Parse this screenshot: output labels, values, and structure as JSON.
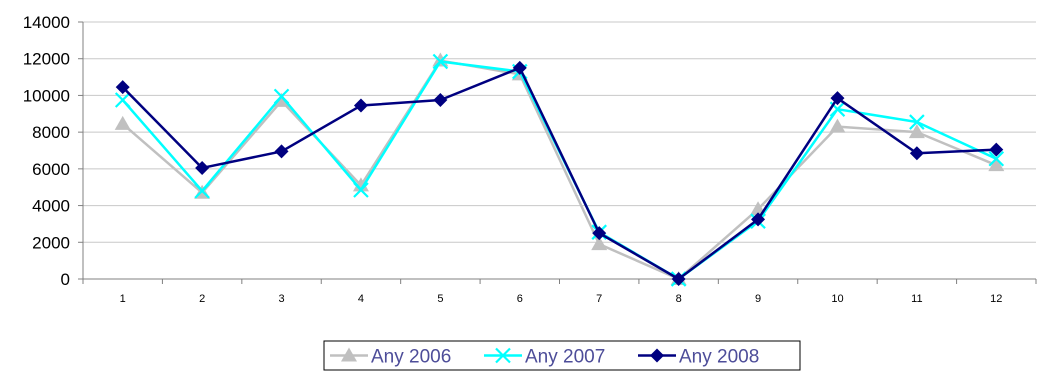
{
  "chart_data": {
    "type": "line",
    "title": "",
    "xlabel": "",
    "ylabel": "",
    "categories": [
      "1",
      "2",
      "3",
      "4",
      "5",
      "6",
      "7",
      "8",
      "9",
      "10",
      "11",
      "12"
    ],
    "ylim": [
      0,
      14000
    ],
    "yticks": [
      0,
      2000,
      4000,
      6000,
      8000,
      10000,
      12000,
      14000
    ],
    "grid": "horizontal",
    "legend": "bottom",
    "series": [
      {
        "name": "Any 2006",
        "marker": "triangle",
        "color": "#c0c0c0",
        "values": [
          8450,
          4700,
          9700,
          5100,
          11900,
          11150,
          1900,
          0,
          3800,
          8300,
          8000,
          6200
        ]
      },
      {
        "name": "Any 2007",
        "marker": "x",
        "color": "#00ffff",
        "values": [
          9750,
          4800,
          9950,
          4850,
          11850,
          11300,
          2550,
          0,
          3150,
          9250,
          8550,
          6550
        ]
      },
      {
        "name": "Any 2008",
        "marker": "diamond",
        "color": "#000080",
        "values": [
          10450,
          6050,
          6950,
          9450,
          9750,
          11500,
          2500,
          0,
          3250,
          9850,
          6850,
          7050
        ]
      }
    ]
  }
}
